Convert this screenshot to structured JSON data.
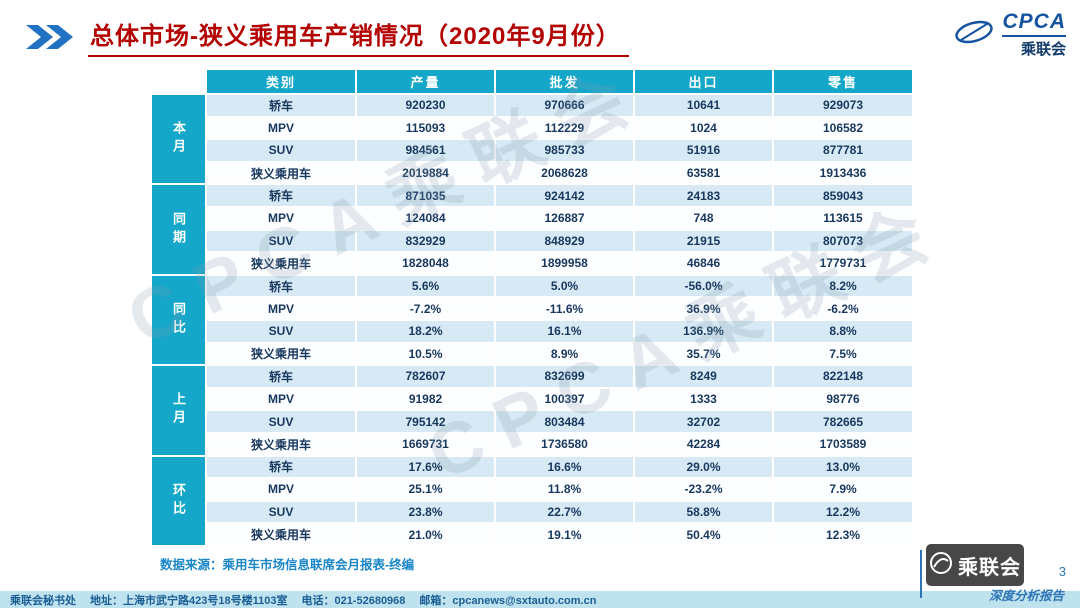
{
  "header": {
    "title": "总体市场-狭义乘用车产销情况（2020年9月份）",
    "logo": {
      "brand": "CPCA",
      "org": "乘联会"
    }
  },
  "table": {
    "columns": [
      "类别",
      "产量",
      "批发",
      "出口",
      "零售"
    ],
    "groups": [
      {
        "label": "本月",
        "rows": [
          {
            "category": "轿车",
            "values": [
              "920230",
              "970666",
              "10641",
              "929073"
            ]
          },
          {
            "category": "MPV",
            "values": [
              "115093",
              "112229",
              "1024",
              "106582"
            ]
          },
          {
            "category": "SUV",
            "values": [
              "984561",
              "985733",
              "51916",
              "877781"
            ]
          },
          {
            "category": "狭义乘用车",
            "values": [
              "2019884",
              "2068628",
              "63581",
              "1913436"
            ]
          }
        ]
      },
      {
        "label": "同期",
        "rows": [
          {
            "category": "轿车",
            "values": [
              "871035",
              "924142",
              "24183",
              "859043"
            ]
          },
          {
            "category": "MPV",
            "values": [
              "124084",
              "126887",
              "748",
              "113615"
            ]
          },
          {
            "category": "SUV",
            "values": [
              "832929",
              "848929",
              "21915",
              "807073"
            ]
          },
          {
            "category": "狭义乘用车",
            "values": [
              "1828048",
              "1899958",
              "46846",
              "1779731"
            ]
          }
        ]
      },
      {
        "label": "同比",
        "rows": [
          {
            "category": "轿车",
            "values": [
              "5.6%",
              "5.0%",
              "-56.0%",
              "8.2%"
            ]
          },
          {
            "category": "MPV",
            "values": [
              "-7.2%",
              "-11.6%",
              "36.9%",
              "-6.2%"
            ]
          },
          {
            "category": "SUV",
            "values": [
              "18.2%",
              "16.1%",
              "136.9%",
              "8.8%"
            ]
          },
          {
            "category": "狭义乘用车",
            "values": [
              "10.5%",
              "8.9%",
              "35.7%",
              "7.5%"
            ]
          }
        ]
      },
      {
        "label": "上月",
        "rows": [
          {
            "category": "轿车",
            "values": [
              "782607",
              "832699",
              "8249",
              "822148"
            ]
          },
          {
            "category": "MPV",
            "values": [
              "91982",
              "100397",
              "1333",
              "98776"
            ]
          },
          {
            "category": "SUV",
            "values": [
              "795142",
              "803484",
              "32702",
              "782665"
            ]
          },
          {
            "category": "狭义乘用车",
            "values": [
              "1669731",
              "1736580",
              "42284",
              "1703589"
            ]
          }
        ]
      },
      {
        "label": "环比",
        "rows": [
          {
            "category": "轿车",
            "values": [
              "17.6%",
              "16.6%",
              "29.0%",
              "13.0%"
            ]
          },
          {
            "category": "MPV",
            "values": [
              "25.1%",
              "11.8%",
              "-23.2%",
              "7.9%"
            ]
          },
          {
            "category": "SUV",
            "values": [
              "23.8%",
              "22.7%",
              "58.8%",
              "12.2%"
            ]
          },
          {
            "category": "狭义乘用车",
            "values": [
              "21.0%",
              "19.1%",
              "50.4%",
              "12.3%"
            ]
          }
        ]
      }
    ]
  },
  "source_note": "数据来源：乘用车市场信息联席会月报表-终编",
  "watermark": {
    "text": "CPCA乘联会"
  },
  "footer": {
    "secretariat": "乘联会秘书处",
    "address": "地址：上海市武宁路423号18号楼1103室",
    "phone": "电话：021-52680968",
    "email": "邮箱：cpcanews@sxtauto.com.cn",
    "page_number": "3",
    "report_label": "深度分析报告",
    "stamp_text": "乘联会"
  },
  "colors": {
    "accent_teal": "#14A7C9",
    "title_red": "#B30000",
    "row_tint": "#D7E9F4",
    "text_navy": "#17375E",
    "footer_bg": "#BFE2EF",
    "link_blue": "#2E75B6"
  }
}
